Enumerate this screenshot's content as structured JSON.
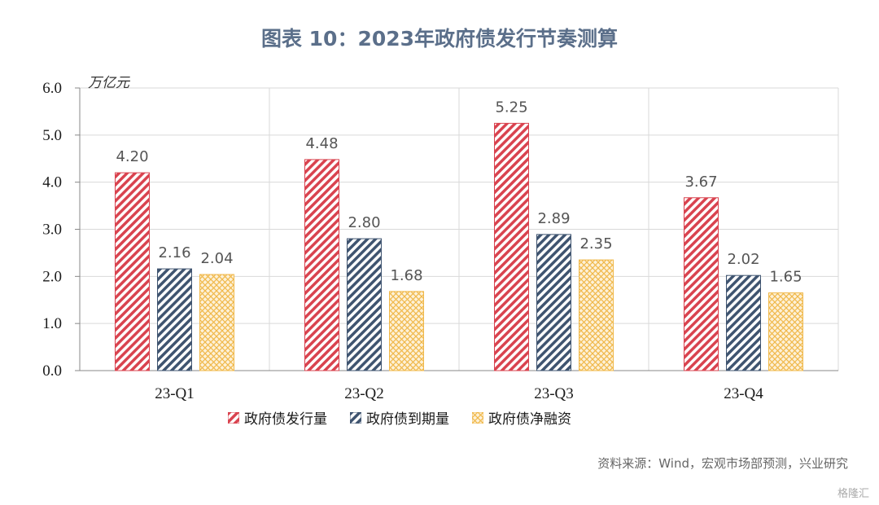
{
  "title": "图表 10：2023年政府债发行节奏测算",
  "source": "资料来源：Wind，宏观市场部预测，兴业研究",
  "watermark": "格隆汇",
  "unit": "万亿元",
  "colors": {
    "issuance": "#d9434f",
    "maturity": "#3f5470",
    "net": "#f0b84a",
    "grid": "#d9d9d9"
  },
  "chart_data": {
    "type": "bar",
    "title": "图表 10：2023年政府债发行节奏测算",
    "ylabel": "万亿元",
    "xlabel": "",
    "ylim": [
      0,
      6
    ],
    "yticks": [
      "0.0",
      "1.0",
      "2.0",
      "3.0",
      "4.0",
      "5.0",
      "6.0"
    ],
    "grid": true,
    "legend_position": "bottom",
    "categories": [
      "23-Q1",
      "23-Q2",
      "23-Q3",
      "23-Q4"
    ],
    "series": [
      {
        "name": "政府债发行量",
        "values": [
          4.2,
          4.48,
          5.25,
          3.67
        ],
        "labels": [
          "4.20",
          "4.48",
          "5.25",
          "3.67"
        ]
      },
      {
        "name": "政府债到期量",
        "values": [
          2.16,
          2.8,
          2.89,
          2.02
        ],
        "labels": [
          "2.16",
          "2.80",
          "2.89",
          "2.02"
        ]
      },
      {
        "name": "政府债净融资",
        "values": [
          2.04,
          1.68,
          2.35,
          1.65
        ],
        "labels": [
          "2.04",
          "1.68",
          "2.35",
          "1.65"
        ]
      }
    ]
  }
}
